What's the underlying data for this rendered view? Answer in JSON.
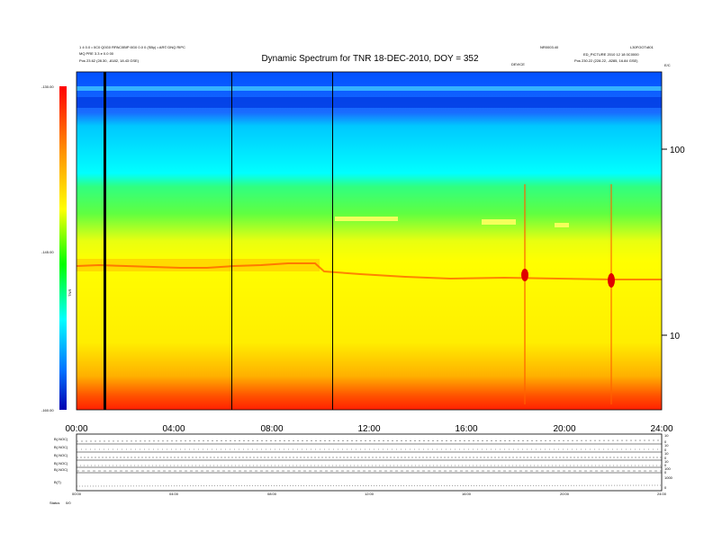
{
  "header": {
    "title": "Dynamic Spectrum for TNR 18-DEC-2010, DOY = 352",
    "top_left_line1": "1 4 0.0 • 0C0 Q0G0 RPAC0BIP:0G0 0.0 0 (SBy) • AR© DNQ RIPC",
    "top_left_line2": "MQ PRE 3.3 e 0.0 00",
    "top_left_line3": "Pos     23.62 (28.30, -8182, 18.43 GSE)",
    "top_right_line1": "NR0003.40",
    "top_right_line2": "L30FOOT•801",
    "top_right_line3": "ED_PICTURE 2010 12 18 0C0000",
    "top_right_line4": "Pos     230.22 (228.22, -8285, 16.84 GSE)",
    "center_small": "DEVICE",
    "corner_right": "E/C"
  },
  "colorbar": {
    "ticks": [
      "-130.00",
      "-145.00",
      "-160.00"
    ],
    "label": "TNR",
    "colors": [
      "#ff0000",
      "#ff8000",
      "#ffff00",
      "#00ff00",
      "#00ffff",
      "#0080ff",
      "#0000c0"
    ]
  },
  "chart_data": {
    "type": "heatmap",
    "title": "Dynamic Spectrum for TNR 18-DEC-2010, DOY = 352",
    "xlabel": "",
    "ylabel": "",
    "x_ticks": [
      "00:00",
      "04:00",
      "08:00",
      "12:00",
      "16:00",
      "20:00",
      "24:00"
    ],
    "x_range_hours": [
      0,
      24
    ],
    "y_ticks_right": [
      "100",
      "10"
    ],
    "y_scale": "log",
    "colorbar_range": [
      -160,
      -130
    ],
    "intensity_bands": [
      {
        "band": "low frequencies",
        "level": "strongest",
        "color": "#ff2000"
      },
      {
        "band": "lower-mid",
        "level": "high",
        "color": "#ffff00"
      },
      {
        "band": "mid",
        "level": "moderate",
        "color": "#00ff40"
      },
      {
        "band": "upper-mid",
        "level": "low",
        "color": "#00ffff"
      },
      {
        "band": "top",
        "level": "lowest",
        "color": "#0040ff"
      }
    ],
    "bursts_hours": [
      18.4,
      22.0
    ],
    "gaps_hours": [
      1.2,
      6.3,
      10.4
    ]
  },
  "lower_panels": {
    "labels": [
      "B(.NOC)",
      "B(.NOC)",
      "B(.NOC)",
      "B(.NOC)",
      "B(.NOC)",
      "B(T)"
    ],
    "right_values": [
      "10",
      "0",
      "10",
      "0",
      "10",
      "0",
      "10",
      "0",
      "100",
      "0",
      "1000",
      "0"
    ],
    "x_ticks": [
      "00:00",
      "04:00",
      "08:00",
      "12:00",
      "16:00",
      "20:00",
      "24:00"
    ],
    "footer_label": "Status",
    "footer_value": "0/0"
  }
}
